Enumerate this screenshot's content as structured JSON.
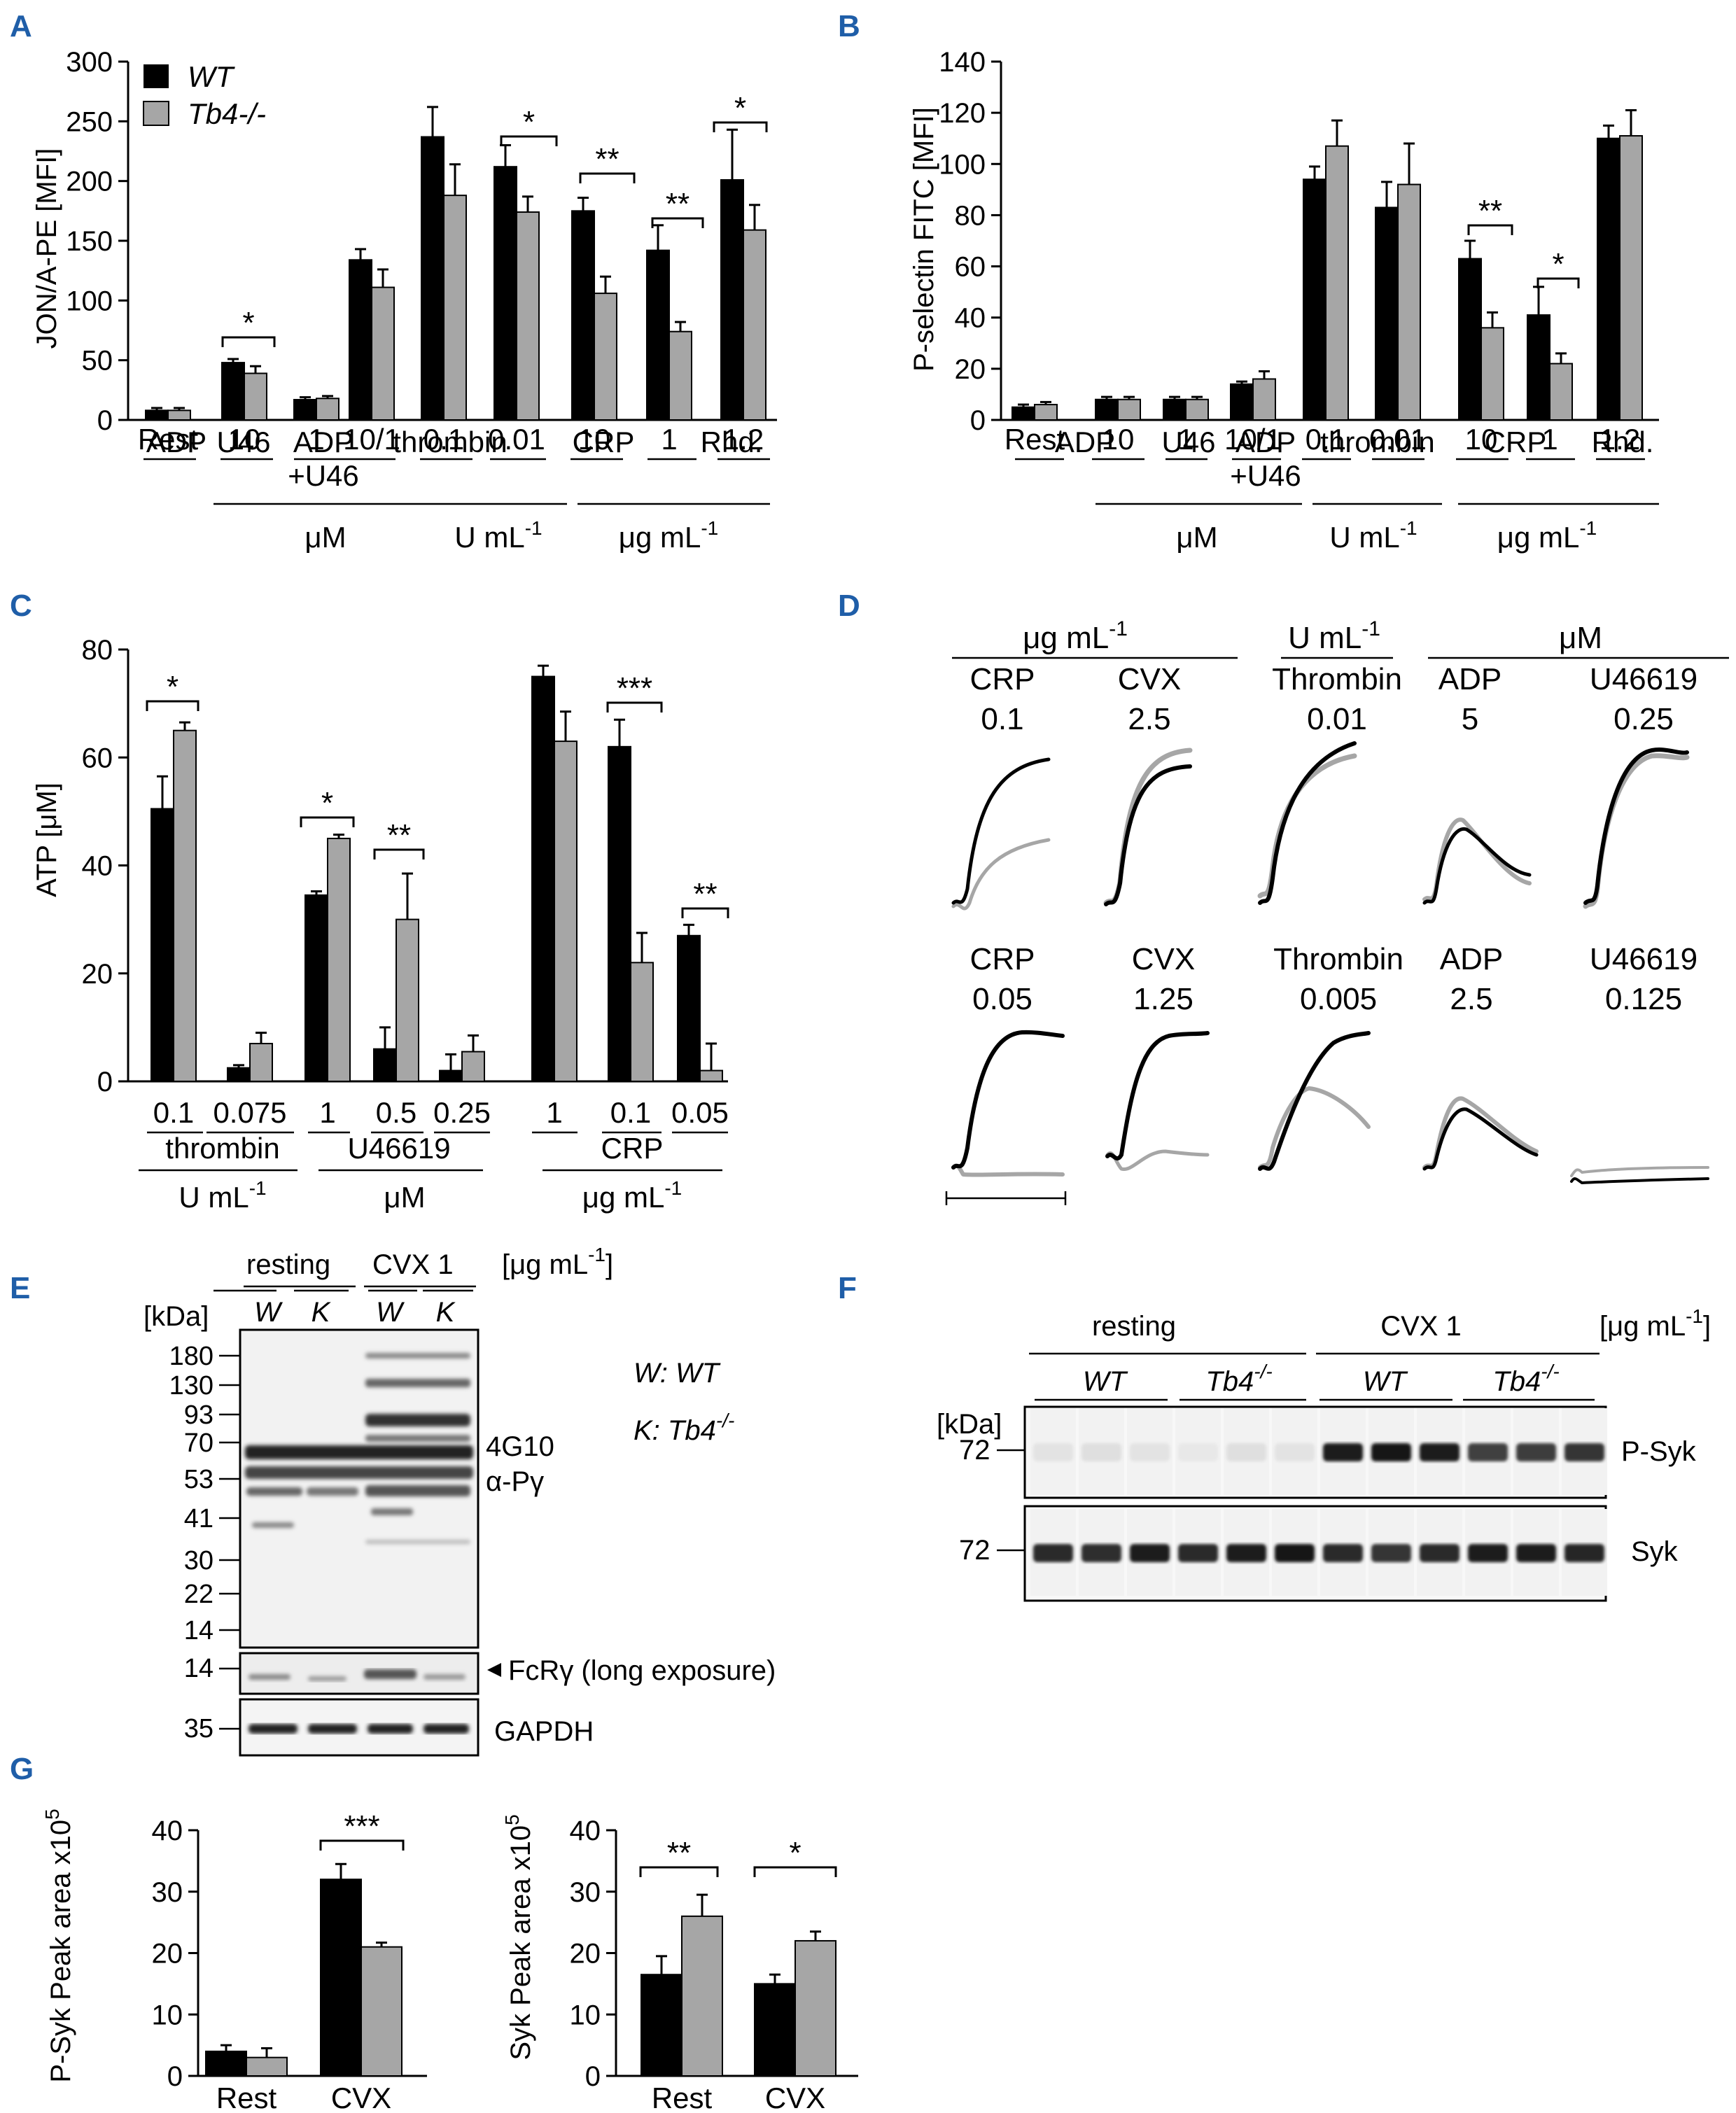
{
  "colors": {
    "wt": "#000000",
    "ko": "#a6a6a6"
  },
  "legend": {
    "wt": "WT",
    "ko": "Tb4-/-"
  },
  "chart_data": [
    {
      "panel": "A",
      "type": "bar",
      "ylabel": "JON/A-PE [MFI]",
      "ylim": [
        0,
        300
      ],
      "yticks": [
        "0",
        "50",
        "100",
        "150",
        "200",
        "250",
        "300"
      ],
      "categories": [
        "Rest",
        "10",
        "1",
        "10/1",
        "0.1",
        "0.01",
        "10",
        "1",
        "1.2"
      ],
      "agonists": [
        "ADP",
        "U46",
        "ADP",
        "thrombin",
        "CRP",
        "Rhd."
      ],
      "agonist_extra": "+U46",
      "units": [
        "μM",
        "U mL-1",
        "μg mL-1"
      ],
      "series": [
        {
          "name": "WT",
          "values": [
            8,
            48,
            17,
            134,
            237,
            212,
            175,
            142,
            201
          ],
          "errors": [
            2,
            3,
            2,
            9,
            25,
            18,
            11,
            21,
            42
          ]
        },
        {
          "name": "Tb4-/-",
          "values": [
            8,
            39,
            18,
            111,
            188,
            174,
            106,
            74,
            159
          ],
          "errors": [
            2,
            6,
            2,
            15,
            26,
            13,
            14,
            8,
            21
          ]
        }
      ],
      "significance": [
        "*",
        "*",
        "**",
        "**",
        "*"
      ]
    },
    {
      "panel": "B",
      "type": "bar",
      "ylabel": "P-selectin FITC [MFI]",
      "ylim": [
        0,
        140
      ],
      "yticks": [
        "0",
        "20",
        "40",
        "60",
        "80",
        "100",
        "120",
        "140"
      ],
      "categories": [
        "Rest",
        "10",
        "1",
        "10/1",
        "0.1",
        "0.01",
        "10",
        "1",
        "1.2"
      ],
      "agonists": [
        "ADP",
        "U46",
        "ADP",
        "thrombin",
        "CRP",
        "Rhd."
      ],
      "agonist_extra": "+U46",
      "units": [
        "μM",
        "U mL-1",
        "μg mL-1"
      ],
      "series": [
        {
          "name": "WT",
          "values": [
            5,
            8,
            8,
            14,
            94,
            83,
            63,
            41,
            110
          ],
          "errors": [
            1,
            1,
            1,
            1,
            5,
            10,
            7,
            11,
            5
          ]
        },
        {
          "name": "Tb4-/-",
          "values": [
            6,
            8,
            8,
            16,
            107,
            92,
            36,
            22,
            111
          ],
          "errors": [
            1,
            1,
            1,
            3,
            10,
            16,
            6,
            4,
            10
          ]
        }
      ],
      "significance": [
        "**",
        "*"
      ]
    },
    {
      "panel": "C",
      "type": "bar",
      "ylabel": "ATP [μM]",
      "ylim": [
        0,
        80
      ],
      "yticks": [
        "0",
        "20",
        "40",
        "60",
        "80"
      ],
      "categories": [
        "0.1",
        "0.075",
        "1",
        "0.5",
        "0.25",
        "1",
        "0.1",
        "0.05"
      ],
      "agonists": [
        "thrombin",
        "U46619",
        "CRP"
      ],
      "units": [
        "U mL-1",
        "μM",
        "μg mL-1"
      ],
      "series": [
        {
          "name": "WT",
          "values": [
            50.5,
            2.5,
            34.5,
            6,
            2,
            75,
            62,
            27
          ],
          "errors": [
            6,
            0.5,
            0.7,
            4,
            3,
            2,
            5,
            2
          ]
        },
        {
          "name": "Tb4-/-",
          "values": [
            65,
            7,
            45,
            30,
            5.5,
            63,
            22,
            2
          ],
          "errors": [
            1.5,
            2,
            0.7,
            8.5,
            3,
            5.5,
            5.5,
            5
          ]
        }
      ],
      "significance": [
        "*",
        "*",
        "**",
        "***",
        "**"
      ]
    },
    {
      "panel": "G-left",
      "type": "bar",
      "ylabel": "P-Syk Peak area x10",
      "ylabel_sup": "5",
      "ylim": [
        0,
        40
      ],
      "yticks": [
        "0",
        "10",
        "20",
        "30",
        "40"
      ],
      "categories": [
        "Rest",
        "CVX"
      ],
      "series": [
        {
          "name": "WT",
          "values": [
            4,
            32
          ],
          "errors": [
            1,
            2.5
          ]
        },
        {
          "name": "Tb4-/-",
          "values": [
            3,
            21
          ],
          "errors": [
            1.5,
            0.7
          ]
        }
      ],
      "significance": [
        "***"
      ]
    },
    {
      "panel": "G-right",
      "type": "bar",
      "ylabel": "Syk Peak area x10",
      "ylabel_sup": "5",
      "ylim": [
        0,
        40
      ],
      "yticks": [
        "0",
        "10",
        "20",
        "30",
        "40"
      ],
      "categories": [
        "Rest",
        "CVX"
      ],
      "series": [
        {
          "name": "WT",
          "values": [
            16.5,
            15
          ],
          "errors": [
            3,
            1.5
          ]
        },
        {
          "name": "Tb4-/-",
          "values": [
            26,
            22
          ],
          "errors": [
            3.5,
            1.5
          ]
        }
      ],
      "significance": [
        "**",
        "*"
      ]
    }
  ],
  "panel_labels": [
    "A",
    "B",
    "C",
    "D",
    "E",
    "F",
    "G"
  ],
  "panelD": {
    "headers": [
      "μg mL-1",
      "U mL-1",
      "μM"
    ],
    "row1": [
      {
        "name": "CRP",
        "dose": "0.1"
      },
      {
        "name": "CVX",
        "dose": "2.5"
      },
      {
        "name": "Thrombin",
        "dose": "0.01"
      },
      {
        "name": "ADP",
        "dose": "5"
      },
      {
        "name": "U46619",
        "dose": "0.25"
      }
    ],
    "row2": [
      {
        "name": "CRP",
        "dose": "0.05"
      },
      {
        "name": "CVX",
        "dose": "1.25"
      },
      {
        "name": "Thrombin",
        "dose": "0.005"
      },
      {
        "name": "ADP",
        "dose": "2.5"
      },
      {
        "name": "U46619",
        "dose": "0.125"
      }
    ]
  },
  "panelE": {
    "groups": [
      "resting",
      "CVX 1"
    ],
    "unit": "[μg mL-1]",
    "lanes": [
      "W",
      "K",
      "W",
      "K"
    ],
    "kda_label": "[kDa]",
    "markers": [
      "180",
      "130",
      "93",
      "70",
      "53",
      "41",
      "30",
      "22",
      "14"
    ],
    "marker_small": "14",
    "marker_gapdh": "35",
    "labels": {
      "g4": "4G10",
      "apy": "α-Pγ",
      "fcr": "FcRγ (long exposure)",
      "gapdh": "GAPDH"
    },
    "key_w": "W: WT",
    "key_k": "K: Tb4-/-"
  },
  "panelF": {
    "groups": [
      "resting",
      "CVX 1"
    ],
    "unit": "[μg mL-1]",
    "subgroups": [
      "WT",
      "Tb4-/-",
      "WT",
      "Tb4-/-"
    ],
    "kda_label": "[kDa]",
    "marker": "72",
    "labels": {
      "psyk": "P-Syk",
      "syk": "Syk"
    }
  }
}
